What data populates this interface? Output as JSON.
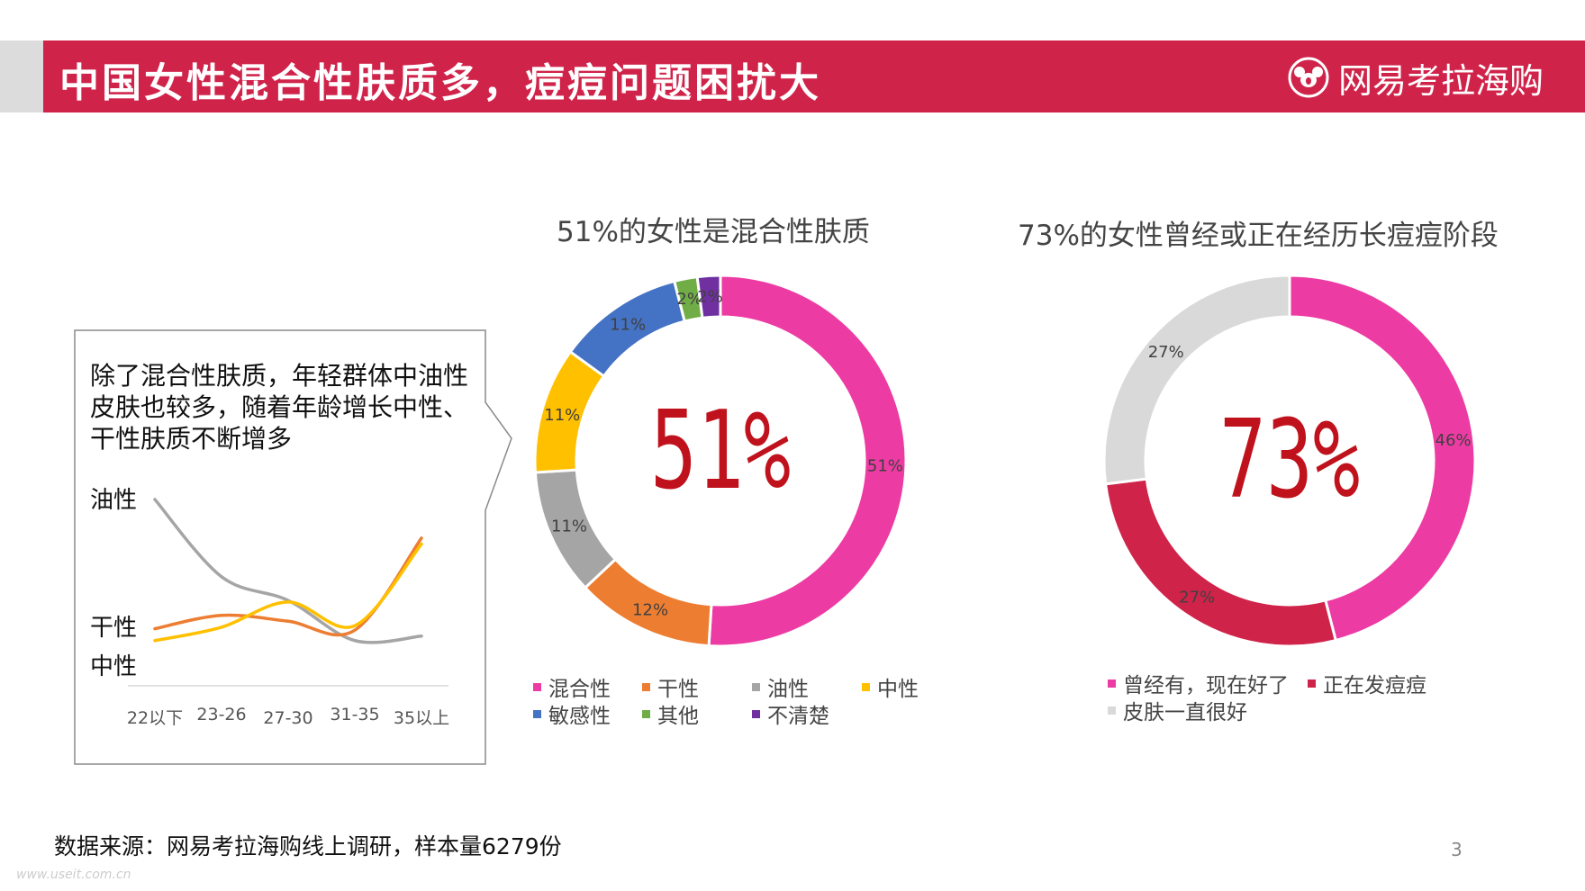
{
  "header": {
    "title": "中国女性混合性肤质多，痘痘问题困扰大",
    "brand": "网易考拉海购",
    "bar_color": "#d0234a"
  },
  "callout": {
    "text": "除了混合性肤质，年轻群体中油性皮肤也较多，随着年龄增长中性、干性肤质不断增多"
  },
  "chart_data": [
    {
      "type": "line",
      "x": [
        "22以下",
        "23-26",
        "27-30",
        "31-35",
        "35以上"
      ],
      "series": [
        {
          "name": "油性",
          "values": [
            1.0,
            0.48,
            0.32,
            0.05,
            0.08
          ],
          "color": "#a5a5a5"
        },
        {
          "name": "干性",
          "values": [
            0.13,
            0.22,
            0.18,
            0.12,
            0.74
          ],
          "color": "#ed7d31"
        },
        {
          "name": "中性",
          "values": [
            0.05,
            0.14,
            0.31,
            0.15,
            0.7
          ],
          "color": "#ffc000"
        }
      ],
      "ylim": [
        0,
        1
      ],
      "grid": false
    },
    {
      "type": "pie",
      "title": "51%的女性是混合性肤质",
      "center_label": "51%",
      "categories": [
        "混合性",
        "干性",
        "油性",
        "中性",
        "敏感性",
        "其他",
        "不清楚"
      ],
      "values": [
        51,
        12,
        11,
        11,
        11,
        2,
        2
      ],
      "labels": [
        "51%",
        "12%",
        "11%",
        "11%",
        "11%",
        "2%",
        "2%"
      ],
      "colors": [
        "#ed3ba4",
        "#ed7d31",
        "#a5a5a5",
        "#ffc000",
        "#4472c4",
        "#70ad47",
        "#7030a0"
      ],
      "legend": "bottom"
    },
    {
      "type": "pie",
      "title": "73%的女性曾经或正在经历长痘痘阶段",
      "center_label": "73%",
      "categories": [
        "曾经有，现在好了",
        "正在发痘痘",
        "皮肤一直很好"
      ],
      "values": [
        46,
        27,
        27
      ],
      "labels": [
        "46%",
        "27%",
        "27%"
      ],
      "colors": [
        "#ed3ba4",
        "#d0234a",
        "#d9d9d9"
      ],
      "legend": "bottom"
    }
  ],
  "footer": {
    "source": "数据来源：网易考拉海购线上调研，样本量6279份",
    "page": "3",
    "watermark": "www.useit.com.cn"
  }
}
